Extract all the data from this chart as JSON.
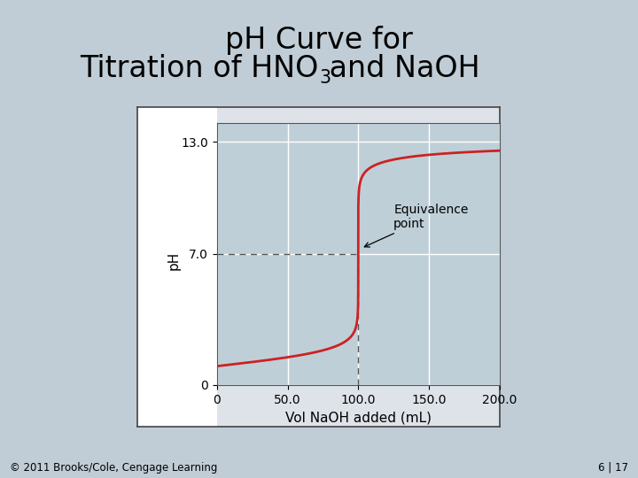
{
  "title_line1": "pH Curve for",
  "title_line2_pre": "Titration of HNO",
  "title_subscript": "3",
  "title_line2_post": " and NaOH",
  "xlabel": "Vol NaOH added (mL)",
  "ylabel": "pH",
  "xlim": [
    0,
    200
  ],
  "ylim": [
    0,
    14
  ],
  "xticks": [
    0,
    50.0,
    100.0,
    150.0,
    200.0
  ],
  "yticks": [
    0,
    7.0,
    13.0
  ],
  "equivalence_x": 100,
  "equivalence_y": 7.0,
  "curve_color": "#cc2222",
  "plot_bg_color": "#bfcfd8",
  "outer_box_bg": "#e8ecef",
  "white_left_bg": "#f0f0f0",
  "fig_bg_color": "#c0cdd6",
  "grid_color": "#ffffff",
  "dashed_color": "#555555",
  "annotation_text1": "Equivalence",
  "annotation_text2": "point",
  "copyright_text": "© 2011 Brooks/Cole, Cengage Learning",
  "page_text": "6 | 17",
  "title_fontsize": 24,
  "axis_label_fontsize": 11,
  "tick_fontsize": 10,
  "annot_fontsize": 10
}
